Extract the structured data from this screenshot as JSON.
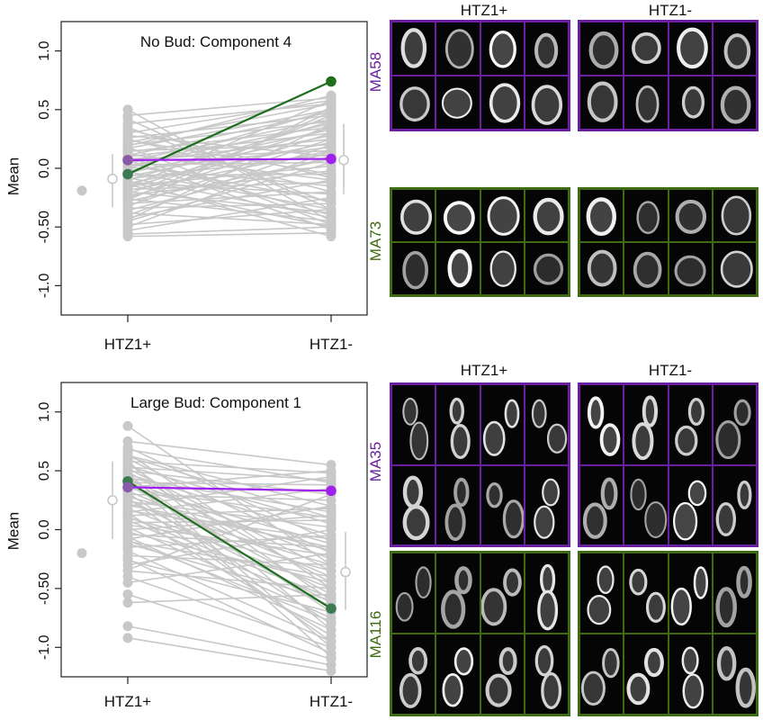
{
  "colors": {
    "grey": "#c8c8c8",
    "purple": "#a020f0",
    "green": "#1e6e1e",
    "purple_frame": "#6a1fa0",
    "green_frame": "#3f6b12",
    "purple_text": "#6a1fa0",
    "green_text": "#3f6b12"
  },
  "chart_data": [
    {
      "type": "scatter",
      "title": "No Bud: Component 4",
      "ylabel": "Mean",
      "categories": [
        "HTZ1+",
        "HTZ1-"
      ],
      "ylim": [
        -1.25,
        1.25
      ],
      "yticks": [
        "1.0",
        "0.5",
        "0.0",
        "-0.50",
        "-1.0"
      ],
      "ytick_values": [
        1.0,
        0.5,
        0.0,
        -0.5,
        -1.0
      ],
      "outlier_left": -0.19,
      "summary": {
        "htz1_plus": {
          "center": -0.09,
          "low": -0.33,
          "high": 0.12
        },
        "htz1_minus": {
          "center": 0.07,
          "low": -0.22,
          "high": 0.38
        }
      },
      "highlight_purple": [
        0.07,
        0.08
      ],
      "highlight_green": [
        -0.05,
        0.74
      ],
      "grey_lines": [
        [
          0.5,
          -0.45
        ],
        [
          0.45,
          0.6
        ],
        [
          0.38,
          0.55
        ],
        [
          0.35,
          -0.3
        ],
        [
          0.3,
          0.58
        ],
        [
          0.28,
          0.1
        ],
        [
          0.26,
          0.45
        ],
        [
          0.25,
          -0.2
        ],
        [
          0.22,
          0.55
        ],
        [
          0.2,
          0.4
        ],
        [
          0.18,
          -0.48
        ],
        [
          0.17,
          0.5
        ],
        [
          0.15,
          0.2
        ],
        [
          0.14,
          0.35
        ],
        [
          0.12,
          -0.1
        ],
        [
          0.11,
          0.48
        ],
        [
          0.1,
          0.3
        ],
        [
          0.09,
          -0.4
        ],
        [
          0.08,
          0.15
        ],
        [
          0.06,
          0.42
        ],
        [
          0.05,
          0.25
        ],
        [
          0.04,
          -0.28
        ],
        [
          0.03,
          0.05
        ],
        [
          0.02,
          0.38
        ],
        [
          0.01,
          -0.15
        ],
        [
          0.0,
          0.5
        ],
        [
          -0.02,
          0.18
        ],
        [
          -0.03,
          -0.35
        ],
        [
          -0.04,
          0.33
        ],
        [
          -0.06,
          -0.05
        ],
        [
          -0.07,
          0.28
        ],
        [
          -0.08,
          -0.42
        ],
        [
          -0.09,
          0.12
        ],
        [
          -0.1,
          0.4
        ],
        [
          -0.12,
          -0.22
        ],
        [
          -0.13,
          0.22
        ],
        [
          -0.14,
          -0.5
        ],
        [
          -0.15,
          0.02
        ],
        [
          -0.17,
          0.35
        ],
        [
          -0.18,
          -0.12
        ],
        [
          -0.19,
          0.15
        ],
        [
          -0.2,
          -0.38
        ],
        [
          -0.22,
          0.45
        ],
        [
          -0.23,
          -0.02
        ],
        [
          -0.25,
          0.3
        ],
        [
          -0.26,
          -0.45
        ],
        [
          -0.28,
          0.08
        ],
        [
          -0.3,
          -0.2
        ],
        [
          -0.32,
          0.25
        ],
        [
          -0.34,
          -0.3
        ],
        [
          -0.36,
          0.1
        ],
        [
          -0.38,
          -0.48
        ],
        [
          -0.4,
          0.2
        ],
        [
          -0.42,
          -0.1
        ],
        [
          -0.45,
          0.05
        ],
        [
          -0.48,
          -0.35
        ],
        [
          -0.5,
          0.15
        ],
        [
          -0.53,
          -0.25
        ],
        [
          -0.56,
          -0.5
        ],
        [
          -0.58,
          -0.55
        ],
        [
          0.42,
          -0.35
        ],
        [
          -0.33,
          0.52
        ],
        [
          0.33,
          -0.08
        ],
        [
          -0.27,
          0.48
        ],
        [
          0.19,
          0.62
        ],
        [
          -0.11,
          -0.58
        ],
        [
          0.07,
          -0.52
        ],
        [
          -0.44,
          0.38
        ],
        [
          0.24,
          -0.05
        ],
        [
          -0.16,
          0.58
        ]
      ]
    },
    {
      "type": "scatter",
      "title": "Large Bud: Component 1",
      "ylabel": "Mean",
      "categories": [
        "HTZ1+",
        "HTZ1-"
      ],
      "ylim": [
        -1.25,
        1.25
      ],
      "yticks": [
        "1.0",
        "0.5",
        "0.0",
        "-0.50",
        "-1.0"
      ],
      "ytick_values": [
        1.0,
        0.5,
        0.0,
        -0.5,
        -1.0
      ],
      "outlier_left": -0.2,
      "summary": {
        "htz1_plus": {
          "center": 0.25,
          "low": -0.08,
          "high": 0.58
        },
        "htz1_minus": {
          "center": -0.36,
          "low": -0.68,
          "high": -0.02
        }
      },
      "highlight_purple": [
        0.36,
        0.33
      ],
      "highlight_green": [
        0.41,
        -0.67
      ],
      "grey_lines": [
        [
          0.88,
          -0.3
        ],
        [
          0.75,
          0.55
        ],
        [
          0.7,
          -0.1
        ],
        [
          0.68,
          0.4
        ],
        [
          0.65,
          -0.5
        ],
        [
          0.63,
          0.2
        ],
        [
          0.6,
          -0.2
        ],
        [
          0.58,
          0.48
        ],
        [
          0.56,
          -0.6
        ],
        [
          0.54,
          0.05
        ],
        [
          0.52,
          -0.35
        ],
        [
          0.5,
          0.3
        ],
        [
          0.49,
          -0.45
        ],
        [
          0.47,
          -0.05
        ],
        [
          0.45,
          -0.7
        ],
        [
          0.44,
          0.15
        ],
        [
          0.42,
          -0.25
        ],
        [
          0.4,
          0.38
        ],
        [
          0.38,
          -0.55
        ],
        [
          0.37,
          -0.12
        ],
        [
          0.35,
          0.1
        ],
        [
          0.33,
          -0.4
        ],
        [
          0.31,
          -0.8
        ],
        [
          0.3,
          0.25
        ],
        [
          0.28,
          -0.18
        ],
        [
          0.26,
          -0.62
        ],
        [
          0.24,
          0.02
        ],
        [
          0.22,
          -0.3
        ],
        [
          0.2,
          0.45
        ],
        [
          0.18,
          -0.5
        ],
        [
          0.16,
          -0.08
        ],
        [
          0.14,
          -0.9
        ],
        [
          0.12,
          0.18
        ],
        [
          0.1,
          -0.35
        ],
        [
          0.08,
          -0.65
        ],
        [
          0.06,
          0.08
        ],
        [
          0.04,
          -0.22
        ],
        [
          0.02,
          -0.75
        ],
        [
          0.0,
          0.12
        ],
        [
          -0.02,
          -0.45
        ],
        [
          -0.04,
          -0.15
        ],
        [
          -0.06,
          -0.85
        ],
        [
          -0.08,
          0.2
        ],
        [
          -0.1,
          -0.4
        ],
        [
          -0.12,
          -0.6
        ],
        [
          -0.15,
          -0.05
        ],
        [
          -0.18,
          -0.95
        ],
        [
          -0.22,
          -0.3
        ],
        [
          -0.26,
          -0.7
        ],
        [
          -0.3,
          0.0
        ],
        [
          -0.35,
          -0.5
        ],
        [
          -0.4,
          -1.0
        ],
        [
          -0.45,
          -0.2
        ],
        [
          -0.55,
          -1.1
        ],
        [
          -0.62,
          -0.55
        ],
        [
          -0.82,
          -1.15
        ],
        [
          -0.92,
          -1.2
        ],
        [
          0.58,
          -0.85
        ],
        [
          0.48,
          -1.0
        ],
        [
          0.36,
          0.5
        ],
        [
          0.27,
          -0.95
        ],
        [
          0.15,
          0.35
        ],
        [
          -0.25,
          -1.05
        ],
        [
          -0.34,
          0.3
        ],
        [
          0.62,
          0.1
        ],
        [
          0.44,
          -1.08
        ],
        [
          0.11,
          -0.58
        ],
        [
          -0.09,
          -0.78
        ],
        [
          0.53,
          0.42
        ],
        [
          0.21,
          -0.15
        ]
      ]
    }
  ],
  "micrographs": {
    "top": {
      "col_htz1_plus": "HTZ1+",
      "col_htz1_minus": "HTZ1-",
      "strain_1": "MA58",
      "strain_2": "MA73"
    },
    "bottom": {
      "col_htz1_plus": "HTZ1+",
      "col_htz1_minus": "HTZ1-",
      "strain_1": "MA35",
      "strain_2": "MA116"
    }
  }
}
